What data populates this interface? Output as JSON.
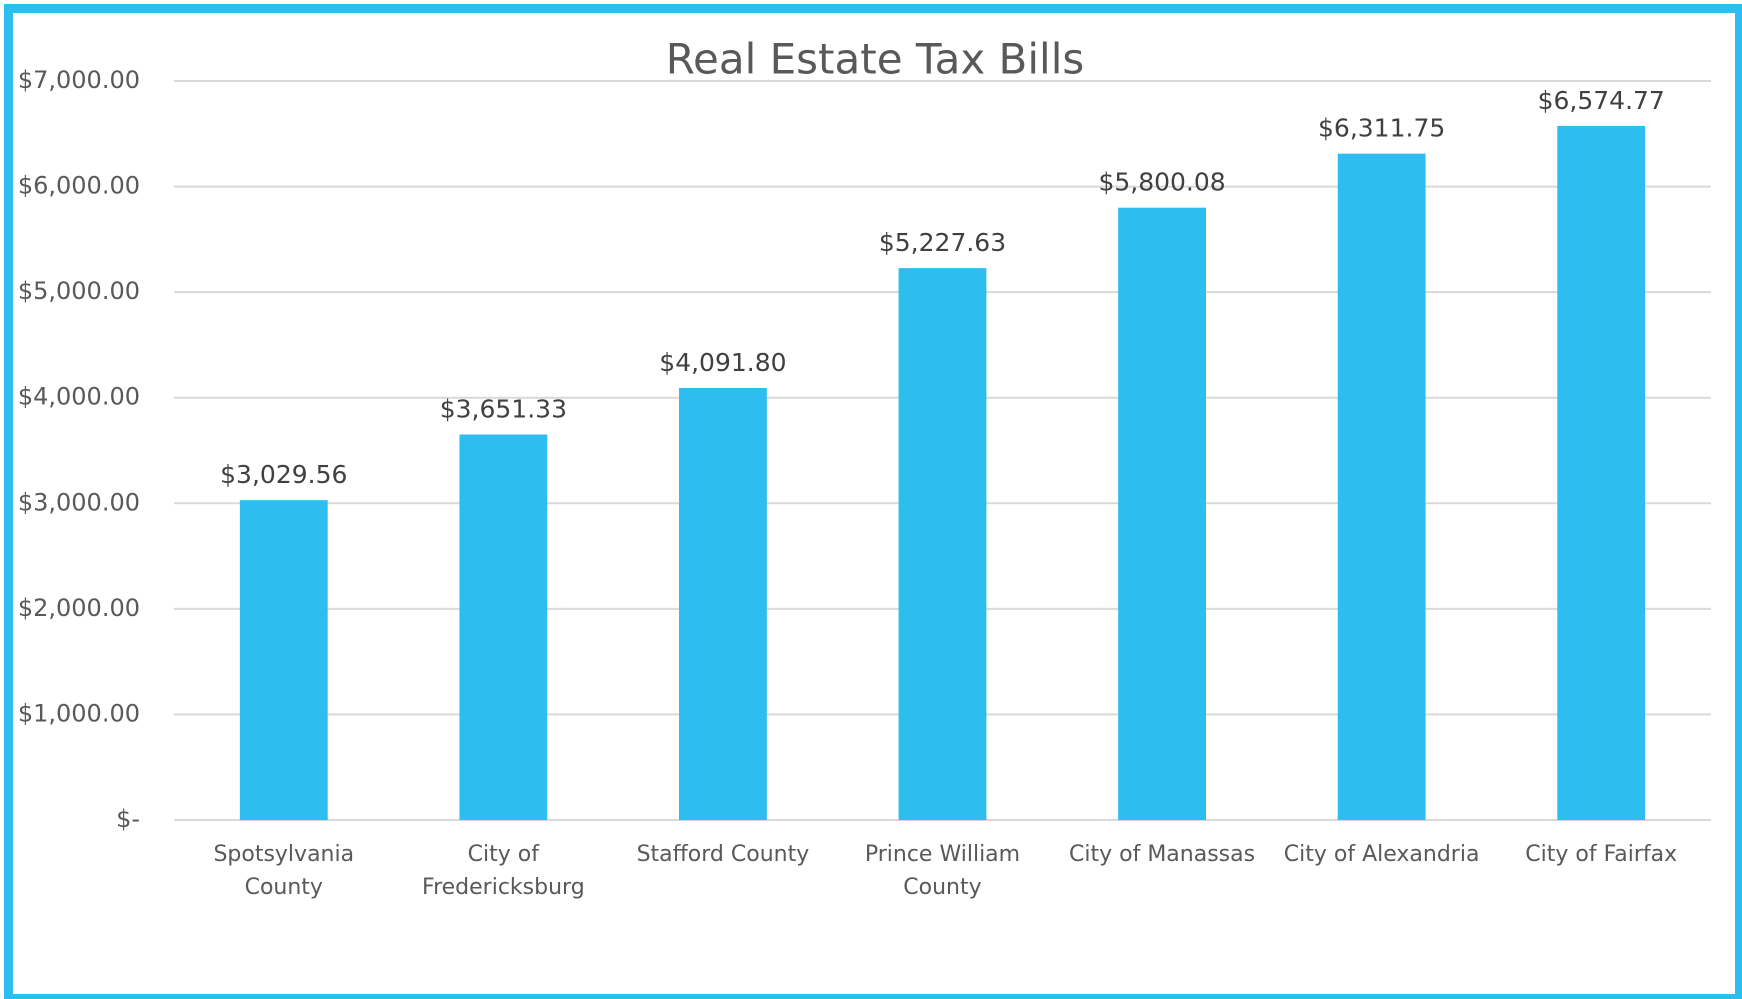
{
  "chart_data": {
    "type": "bar",
    "title": "Real Estate Tax Bills",
    "categories": [
      "Spotsylvania County",
      "City of Fredericksburg",
      "Stafford County",
      "Prince William County",
      "City of Manassas",
      "City of Alexandria",
      "City of Fairfax"
    ],
    "values": [
      3029.56,
      3651.33,
      4091.8,
      5227.63,
      5800.08,
      6311.75,
      6574.77
    ],
    "value_labels": [
      "$3,029.56",
      "$3,651.33",
      "$4,091.80",
      "$5,227.63",
      "$5,800.08",
      "$6,311.75",
      "$6,574.77"
    ],
    "color": "#2dbdee",
    "ylim": [
      0,
      7000
    ],
    "yticks": [
      {
        "value": 0,
        "label": "$-"
      },
      {
        "value": 1000,
        "label": "$1,000.00"
      },
      {
        "value": 2000,
        "label": "$2,000.00"
      },
      {
        "value": 3000,
        "label": "$3,000.00"
      },
      {
        "value": 4000,
        "label": "$4,000.00"
      },
      {
        "value": 5000,
        "label": "$5,000.00"
      },
      {
        "value": 6000,
        "label": "$6,000.00"
      },
      {
        "value": 7000,
        "label": "$7,000.00"
      }
    ],
    "grid": true
  }
}
